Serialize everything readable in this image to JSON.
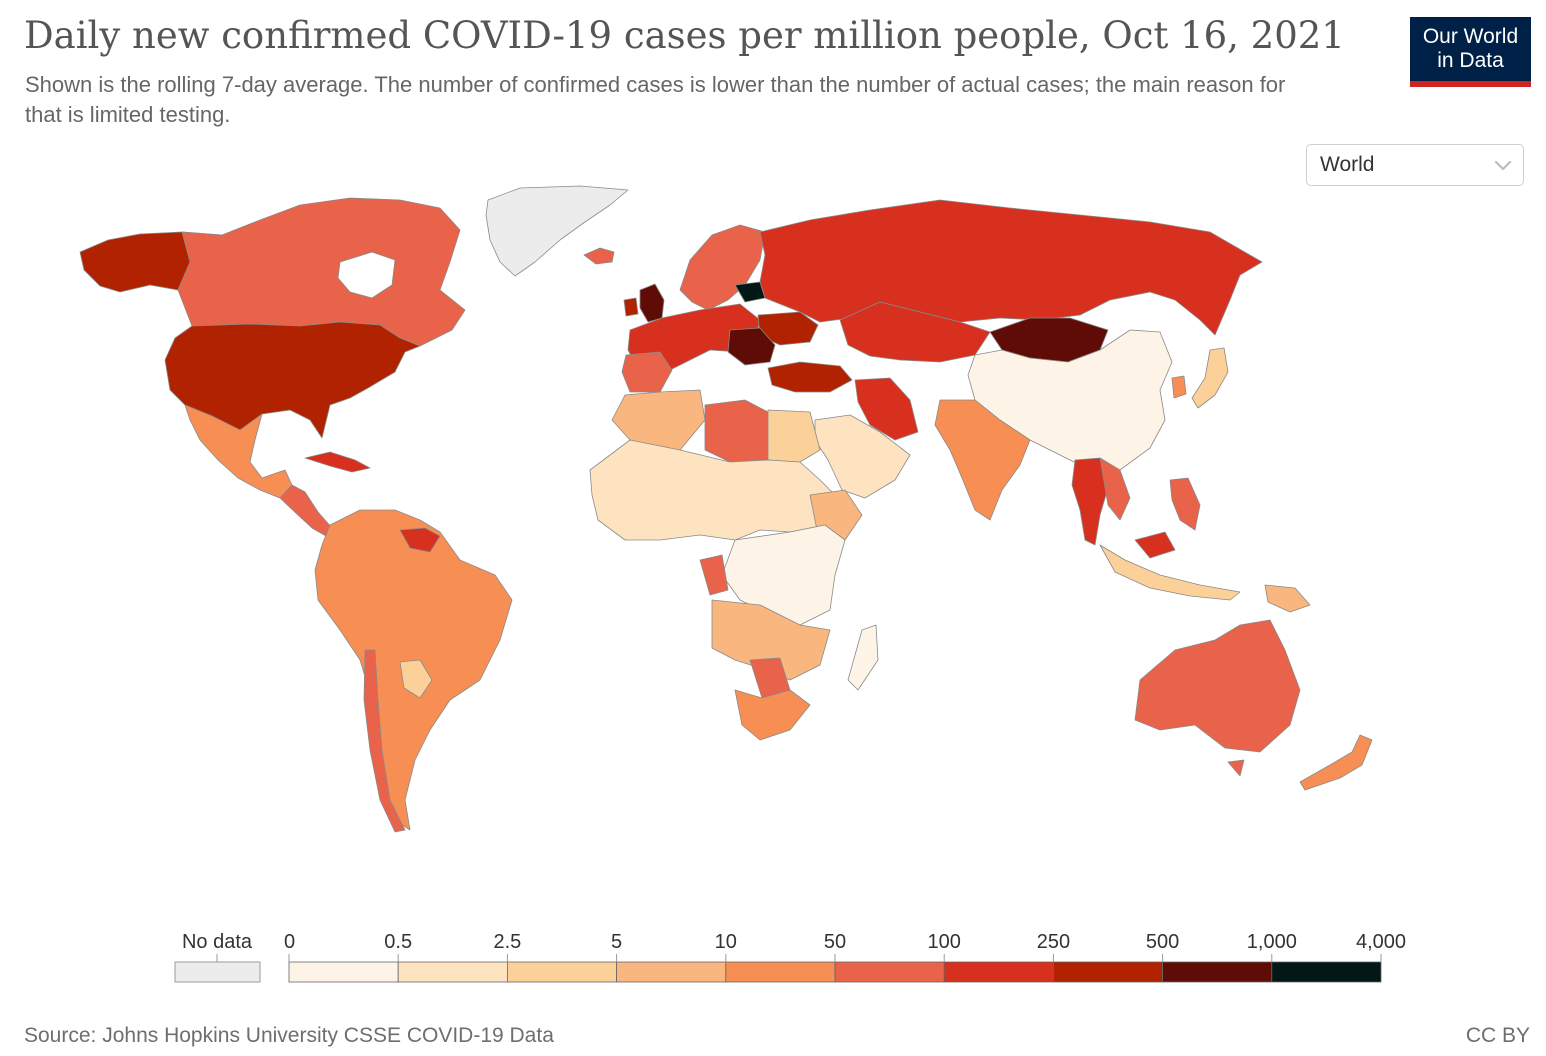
{
  "header": {
    "title": "Daily new confirmed COVID-19 cases per million people, Oct 16, 2021",
    "subtitle": "Shown is the rolling 7-day average. The number of confirmed cases is lower than the number of actual cases; the main reason for that is limited testing."
  },
  "logo": {
    "line1": "Our World",
    "line2": "in Data",
    "bg": "#002147",
    "accent": "#ce261e"
  },
  "region_selector": {
    "selected": "World",
    "icon": "chevron-down-icon"
  },
  "legend": {
    "no_data_label": "No data",
    "no_data_color": "#ececec",
    "bins": [
      {
        "min_label": "0",
        "max_label": "0.5",
        "color": "#fdf3e7"
      },
      {
        "min_label": "0.5",
        "max_label": "2.5",
        "color": "#fde3c0"
      },
      {
        "min_label": "2.5",
        "max_label": "5",
        "color": "#fcd199"
      },
      {
        "min_label": "5",
        "max_label": "10",
        "color": "#f9b67e"
      },
      {
        "min_label": "10",
        "max_label": "50",
        "color": "#f78f55"
      },
      {
        "min_label": "50",
        "max_label": "100",
        "color": "#e8634a"
      },
      {
        "min_label": "100",
        "max_label": "250",
        "color": "#d7301f"
      },
      {
        "min_label": "250",
        "max_label": "500",
        "color": "#b12200"
      },
      {
        "min_label": "500",
        "max_label": "1,000",
        "color": "#5f0c06"
      },
      {
        "min_label": "1,000",
        "max_label": "4,000",
        "color": "#031816"
      }
    ]
  },
  "map_data": {
    "indicator": "Daily new confirmed COVID-19 cases per million people",
    "date": "Oct 16, 2021",
    "regions": [
      {
        "name": "Alaska",
        "bin": "250–500"
      },
      {
        "name": "Canada",
        "bin": "50–100"
      },
      {
        "name": "United States",
        "bin": "250–500"
      },
      {
        "name": "Mexico",
        "bin": "10–50"
      },
      {
        "name": "Central America",
        "bin": "50–100"
      },
      {
        "name": "Cuba",
        "bin": "100–250"
      },
      {
        "name": "Greenland",
        "bin": "No data"
      },
      {
        "name": "Iceland",
        "bin": "50–100"
      },
      {
        "name": "Colombia / Peru / Brazil",
        "bin": "10–50"
      },
      {
        "name": "Guyana / Suriname",
        "bin": "100–250"
      },
      {
        "name": "Chile",
        "bin": "50–100"
      },
      {
        "name": "Argentina",
        "bin": "10–50"
      },
      {
        "name": "Paraguay",
        "bin": "2.5–5"
      },
      {
        "name": "United Kingdom",
        "bin": "500–1,000"
      },
      {
        "name": "Scandinavia",
        "bin": "50–100"
      },
      {
        "name": "Western Europe",
        "bin": "100–250"
      },
      {
        "name": "Baltic states",
        "bin": "1,000–4,000"
      },
      {
        "name": "Ukraine",
        "bin": "250–500"
      },
      {
        "name": "Romania / Bulgaria / Serbia",
        "bin": "500–1,000"
      },
      {
        "name": "Turkey",
        "bin": "250–500"
      },
      {
        "name": "Russia",
        "bin": "100–250"
      },
      {
        "name": "Kazakhstan",
        "bin": "100–250"
      },
      {
        "name": "Mongolia",
        "bin": "500–1,000"
      },
      {
        "name": "Iran",
        "bin": "100–250"
      },
      {
        "name": "Arabian Peninsula",
        "bin": "0.5–2.5"
      },
      {
        "name": "India",
        "bin": "10–50"
      },
      {
        "name": "China",
        "bin": "0–0.5"
      },
      {
        "name": "Japan",
        "bin": "2.5–5"
      },
      {
        "name": "Korea",
        "bin": "10–50"
      },
      {
        "name": "Thailand",
        "bin": "100–250"
      },
      {
        "name": "Vietnam / Laos",
        "bin": "50–100"
      },
      {
        "name": "Malaysia",
        "bin": "100–250"
      },
      {
        "name": "Indonesia",
        "bin": "2.5–5"
      },
      {
        "name": "Philippines",
        "bin": "50–100"
      },
      {
        "name": "Papua New Guinea",
        "bin": "5–10"
      },
      {
        "name": "Australia",
        "bin": "50–100"
      },
      {
        "name": "New Zealand",
        "bin": "10–50"
      },
      {
        "name": "Morocco / Algeria",
        "bin": "5–10"
      },
      {
        "name": "Libya",
        "bin": "50–100"
      },
      {
        "name": "Egypt",
        "bin": "2.5–5"
      },
      {
        "name": "West Africa",
        "bin": "0.5–2.5"
      },
      {
        "name": "Central Africa",
        "bin": "0–0.5"
      },
      {
        "name": "Gabon",
        "bin": "50–100"
      },
      {
        "name": "Ethiopia",
        "bin": "5–10"
      },
      {
        "name": "Angola / Zambia",
        "bin": "5–10"
      },
      {
        "name": "Botswana",
        "bin": "50–100"
      },
      {
        "name": "South Africa",
        "bin": "10–50"
      },
      {
        "name": "Madagascar",
        "bin": "0–0.5"
      }
    ]
  },
  "footer": {
    "source": "Source: Johns Hopkins University CSSE COVID-19 Data",
    "license": "CC BY"
  }
}
